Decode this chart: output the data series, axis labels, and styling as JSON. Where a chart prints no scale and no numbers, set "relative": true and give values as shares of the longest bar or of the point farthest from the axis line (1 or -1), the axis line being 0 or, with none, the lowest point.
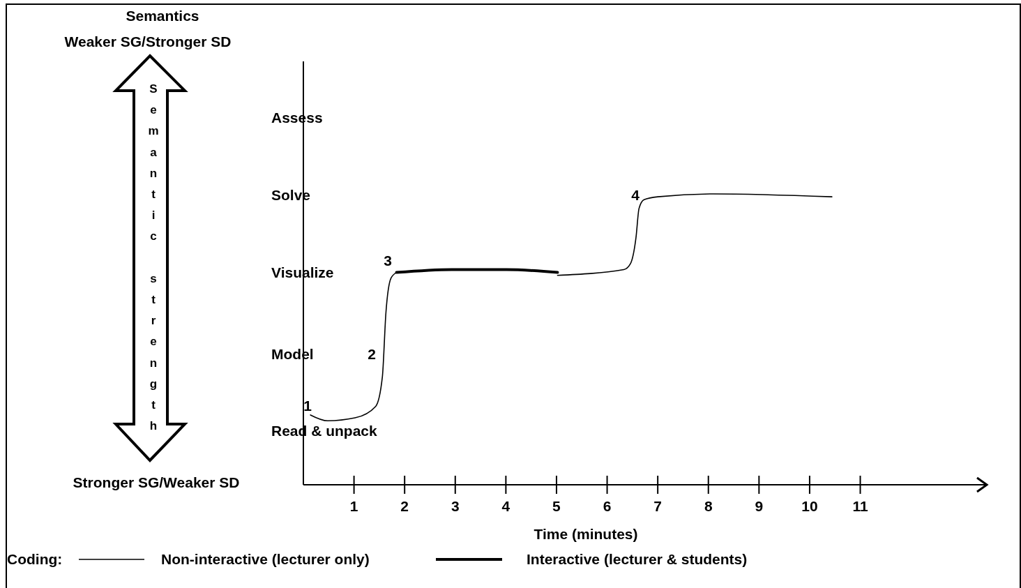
{
  "chart_data": {
    "type": "line",
    "relative": true,
    "xlabel": "Time (minutes)",
    "ylabel": "Semantic strength",
    "legend_title": "Coding:",
    "legend": "bottom",
    "annotations": [
      "Semantics",
      "Weaker SG/Stronger SD",
      "Stronger SG/Weaker SD",
      "Assess",
      "Solve",
      "Visualize",
      "Model",
      "Read & unpack",
      "1",
      "2",
      "3",
      "4"
    ],
    "series": [
      {
        "name": "Non-interactive (lecturer only)",
        "color": "#000000",
        "x": [
          0.14,
          0.48,
          1.02,
          1.43,
          1.56,
          1.63,
          1.73,
          1.84,
          3,
          5.02,
          6.33,
          6.46,
          6.57,
          6.63,
          6.73,
          7.0,
          8.1,
          10.44
        ],
        "values": [
          0.24,
          0.22,
          0.23,
          0.27,
          0.37,
          0.59,
          0.71,
          0.73,
          null,
          0.72,
          0.74,
          0.76,
          0.85,
          0.95,
          0.98,
          0.99,
          1,
          0.99
        ]
      },
      {
        "name": "Interactive (lecturer & students)",
        "color": "#000000",
        "x": [
          1.84,
          2.93,
          4.01,
          5.02
        ],
        "values": [
          0.73,
          0.74,
          0.74,
          0.73
        ]
      }
    ],
    "xlim": [
      0,
      13.5
    ],
    "xticks": [
      1,
      2,
      3,
      4,
      5,
      6,
      7,
      8,
      9,
      10,
      11
    ],
    "grid": false,
    "marker": "none",
    "line_style": "solid"
  }
}
